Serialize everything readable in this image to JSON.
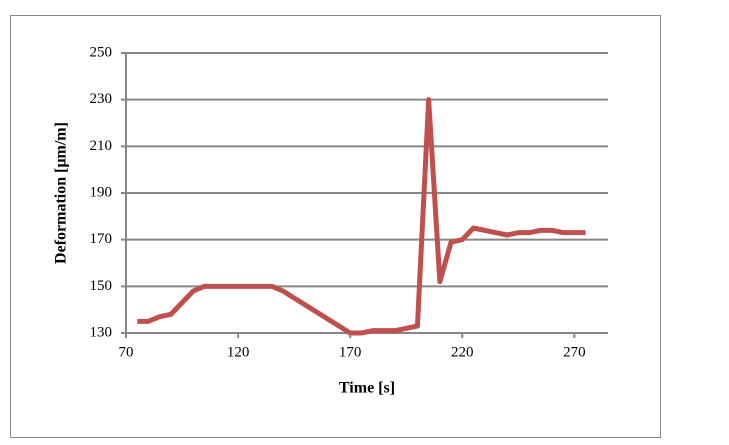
{
  "chart_data": {
    "type": "line",
    "x_label": "Time [s]",
    "y_label": "Deformation [μm/m]",
    "x": [
      75,
      80,
      85,
      90,
      100,
      105,
      110,
      115,
      120,
      125,
      130,
      135,
      140,
      150,
      160,
      170,
      175,
      180,
      190,
      200,
      205,
      210,
      215,
      220,
      225,
      235,
      240,
      245,
      250,
      255,
      260,
      265,
      270,
      275
    ],
    "series": [
      {
        "color": "#c0504d",
        "values": [
          135,
          135,
          137,
          138,
          148,
          150,
          150,
          150,
          150,
          150,
          150,
          150,
          148,
          142,
          136,
          130,
          130,
          131,
          131,
          133,
          230,
          152,
          169,
          170,
          175,
          173,
          172,
          173,
          173,
          174,
          174,
          173,
          173,
          173
        ]
      }
    ],
    "xlim": [
      70,
      285
    ],
    "xticks": [
      70,
      120,
      170,
      220,
      270
    ],
    "ylim": [
      130,
      250
    ],
    "yticks": [
      130,
      150,
      170,
      190,
      210,
      230,
      250
    ],
    "grid": true
  }
}
